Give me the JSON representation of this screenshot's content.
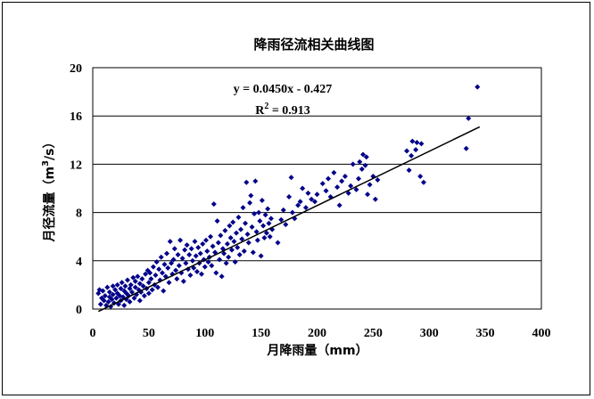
{
  "chart_data": {
    "type": "scatter",
    "title": "降雨径流相关曲线图",
    "xlabel": "月降雨量（mm）",
    "ylabel_main": "月径流量（m",
    "ylabel_sup": "3",
    "ylabel_end": "/s）",
    "xlim": [
      0,
      400
    ],
    "ylim": [
      0,
      20
    ],
    "x_ticks": [
      0,
      50,
      100,
      150,
      200,
      250,
      300,
      350,
      400
    ],
    "y_ticks": [
      0,
      4,
      8,
      12,
      16,
      20
    ],
    "grid": "horizontal",
    "legend": "none",
    "marker_color": "#00008B",
    "trendline": {
      "slope": 0.045,
      "intercept": -0.427,
      "x_range": [
        5,
        345
      ],
      "color": "#000000"
    },
    "equation": "y = 0.0450x - 0.427",
    "r2_prefix": "R",
    "r2_sup": "2",
    "r2_suffix": " = 0.913",
    "points": [
      [
        5,
        1.3
      ],
      [
        6,
        1.6
      ],
      [
        7,
        0.4
      ],
      [
        8,
        0.9
      ],
      [
        9,
        1.5
      ],
      [
        10,
        0.7
      ],
      [
        11,
        1.1
      ],
      [
        12,
        0.3
      ],
      [
        13,
        1.8
      ],
      [
        14,
        0.6
      ],
      [
        15,
        1.0
      ],
      [
        15,
        1.4
      ],
      [
        16,
        0.2
      ],
      [
        17,
        0.8
      ],
      [
        18,
        1.2
      ],
      [
        18,
        1.9
      ],
      [
        19,
        0.5
      ],
      [
        20,
        1.6
      ],
      [
        21,
        0.9
      ],
      [
        22,
        1.3
      ],
      [
        22,
        2.0
      ],
      [
        23,
        0.4
      ],
      [
        24,
        1.1
      ],
      [
        25,
        1.7
      ],
      [
        25,
        0.7
      ],
      [
        26,
        2.2
      ],
      [
        27,
        1.0
      ],
      [
        28,
        1.5
      ],
      [
        28,
        0.3
      ],
      [
        29,
        1.9
      ],
      [
        30,
        0.8
      ],
      [
        30,
        1.3
      ],
      [
        31,
        2.4
      ],
      [
        32,
        1.1
      ],
      [
        33,
        1.7
      ],
      [
        33,
        0.6
      ],
      [
        34,
        2.0
      ],
      [
        35,
        1.4
      ],
      [
        36,
        2.6
      ],
      [
        37,
        0.9
      ],
      [
        38,
        1.8
      ],
      [
        38,
        2.3
      ],
      [
        39,
        1.2
      ],
      [
        40,
        2.7
      ],
      [
        41,
        1.6
      ],
      [
        42,
        0.7
      ],
      [
        42,
        2.1
      ],
      [
        43,
        1.4
      ],
      [
        44,
        2.5
      ],
      [
        45,
        1.9
      ],
      [
        46,
        1.1
      ],
      [
        47,
        2.9
      ],
      [
        48,
        1.7
      ],
      [
        49,
        3.2
      ],
      [
        50,
        2.2
      ],
      [
        50,
        1.3
      ],
      [
        51,
        3.0
      ],
      [
        52,
        2.5
      ],
      [
        53,
        1.6
      ],
      [
        54,
        3.5
      ],
      [
        55,
        2.0
      ],
      [
        56,
        2.8
      ],
      [
        57,
        3.9
      ],
      [
        58,
        1.8
      ],
      [
        59,
        3.3
      ],
      [
        60,
        2.4
      ],
      [
        61,
        4.3
      ],
      [
        62,
        3.0
      ],
      [
        63,
        1.5
      ],
      [
        64,
        3.7
      ],
      [
        65,
        2.7
      ],
      [
        66,
        4.6
      ],
      [
        67,
        3.4
      ],
      [
        68,
        2.2
      ],
      [
        69,
        5.6
      ],
      [
        70,
        3.8
      ],
      [
        71,
        2.9
      ],
      [
        72,
        4.1
      ],
      [
        73,
        5.0
      ],
      [
        74,
        3.2
      ],
      [
        75,
        2.5
      ],
      [
        76,
        4.5
      ],
      [
        77,
        3.6
      ],
      [
        78,
        5.7
      ],
      [
        79,
        3.0
      ],
      [
        80,
        4.2
      ],
      [
        81,
        2.3
      ],
      [
        82,
        4.9
      ],
      [
        83,
        3.8
      ],
      [
        84,
        5.3
      ],
      [
        85,
        3.3
      ],
      [
        86,
        4.5
      ],
      [
        87,
        2.8
      ],
      [
        88,
        5.0
      ],
      [
        89,
        4.0
      ],
      [
        90,
        3.4
      ],
      [
        91,
        5.6
      ],
      [
        92,
        4.4
      ],
      [
        93,
        3.1
      ],
      [
        94,
        5.1
      ],
      [
        95,
        3.8
      ],
      [
        96,
        4.6
      ],
      [
        97,
        2.9
      ],
      [
        98,
        5.4
      ],
      [
        99,
        4.1
      ],
      [
        100,
        3.5
      ],
      [
        101,
        5.7
      ],
      [
        102,
        4.8
      ],
      [
        103,
        3.9
      ],
      [
        104,
        4.3
      ],
      [
        105,
        6.0
      ],
      [
        106,
        3.6
      ],
      [
        107,
        5.2
      ],
      [
        108,
        8.7
      ],
      [
        109,
        4.7
      ],
      [
        110,
        3.0
      ],
      [
        111,
        7.3
      ],
      [
        112,
        5.5
      ],
      [
        113,
        4.1
      ],
      [
        114,
        6.1
      ],
      [
        115,
        2.7
      ],
      [
        116,
        5.0
      ],
      [
        117,
        4.6
      ],
      [
        118,
        6.5
      ],
      [
        119,
        3.8
      ],
      [
        120,
        5.4
      ],
      [
        121,
        4.3
      ],
      [
        122,
        6.9
      ],
      [
        123,
        5.9
      ],
      [
        124,
        4.9
      ],
      [
        125,
        7.2
      ],
      [
        126,
        5.6
      ],
      [
        127,
        3.9
      ],
      [
        128,
        6.3
      ],
      [
        129,
        5.1
      ],
      [
        130,
        7.6
      ],
      [
        131,
        4.5
      ],
      [
        132,
        6.6
      ],
      [
        133,
        5.8
      ],
      [
        134,
        8.4
      ],
      [
        135,
        4.8
      ],
      [
        136,
        7.1
      ],
      [
        137,
        10.5
      ],
      [
        138,
        6.2
      ],
      [
        139,
        5.5
      ],
      [
        140,
        8.8
      ],
      [
        141,
        9.4
      ],
      [
        142,
        6.8
      ],
      [
        143,
        4.7
      ],
      [
        144,
        7.9
      ],
      [
        145,
        10.6
      ],
      [
        146,
        6.4
      ],
      [
        147,
        5.7
      ],
      [
        148,
        8.0
      ],
      [
        149,
        7.3
      ],
      [
        150,
        4.4
      ],
      [
        151,
        9.0
      ],
      [
        152,
        6.9
      ],
      [
        153,
        5.9
      ],
      [
        154,
        7.8
      ],
      [
        155,
        6.3
      ],
      [
        156,
        8.3
      ],
      [
        157,
        7.1
      ],
      [
        158,
        6.0
      ],
      [
        159,
        7.5
      ],
      [
        160,
        6.6
      ],
      [
        165,
        5.5
      ],
      [
        168,
        7.4
      ],
      [
        170,
        8.2
      ],
      [
        172,
        7.0
      ],
      [
        175,
        9.3
      ],
      [
        177,
        10.9
      ],
      [
        178,
        8.0
      ],
      [
        180,
        7.5
      ],
      [
        183,
        8.6
      ],
      [
        185,
        8.9
      ],
      [
        187,
        10.0
      ],
      [
        190,
        8.4
      ],
      [
        192,
        9.6
      ],
      [
        195,
        9.1
      ],
      [
        198,
        8.9
      ],
      [
        200,
        9.5
      ],
      [
        205,
        10.4
      ],
      [
        208,
        9.8
      ],
      [
        210,
        10.8
      ],
      [
        212,
        9.3
      ],
      [
        215,
        11.3
      ],
      [
        218,
        10.1
      ],
      [
        220,
        8.6
      ],
      [
        222,
        10.6
      ],
      [
        225,
        11.0
      ],
      [
        228,
        9.6
      ],
      [
        230,
        10.2
      ],
      [
        232,
        12.0
      ],
      [
        235,
        9.9
      ],
      [
        237,
        10.8
      ],
      [
        238,
        12.2
      ],
      [
        240,
        11.6
      ],
      [
        241,
        12.8
      ],
      [
        243,
        11.9
      ],
      [
        244,
        12.6
      ],
      [
        245,
        9.5
      ],
      [
        247,
        10.3
      ],
      [
        250,
        11.0
      ],
      [
        252,
        9.1
      ],
      [
        254,
        10.7
      ],
      [
        280,
        13.1
      ],
      [
        282,
        11.5
      ],
      [
        284,
        12.7
      ],
      [
        285,
        13.9
      ],
      [
        288,
        13.2
      ],
      [
        289,
        13.8
      ],
      [
        292,
        11.0
      ],
      [
        293,
        13.7
      ],
      [
        295,
        10.5
      ],
      [
        333,
        13.3
      ],
      [
        335,
        15.8
      ],
      [
        343,
        18.4
      ]
    ]
  }
}
